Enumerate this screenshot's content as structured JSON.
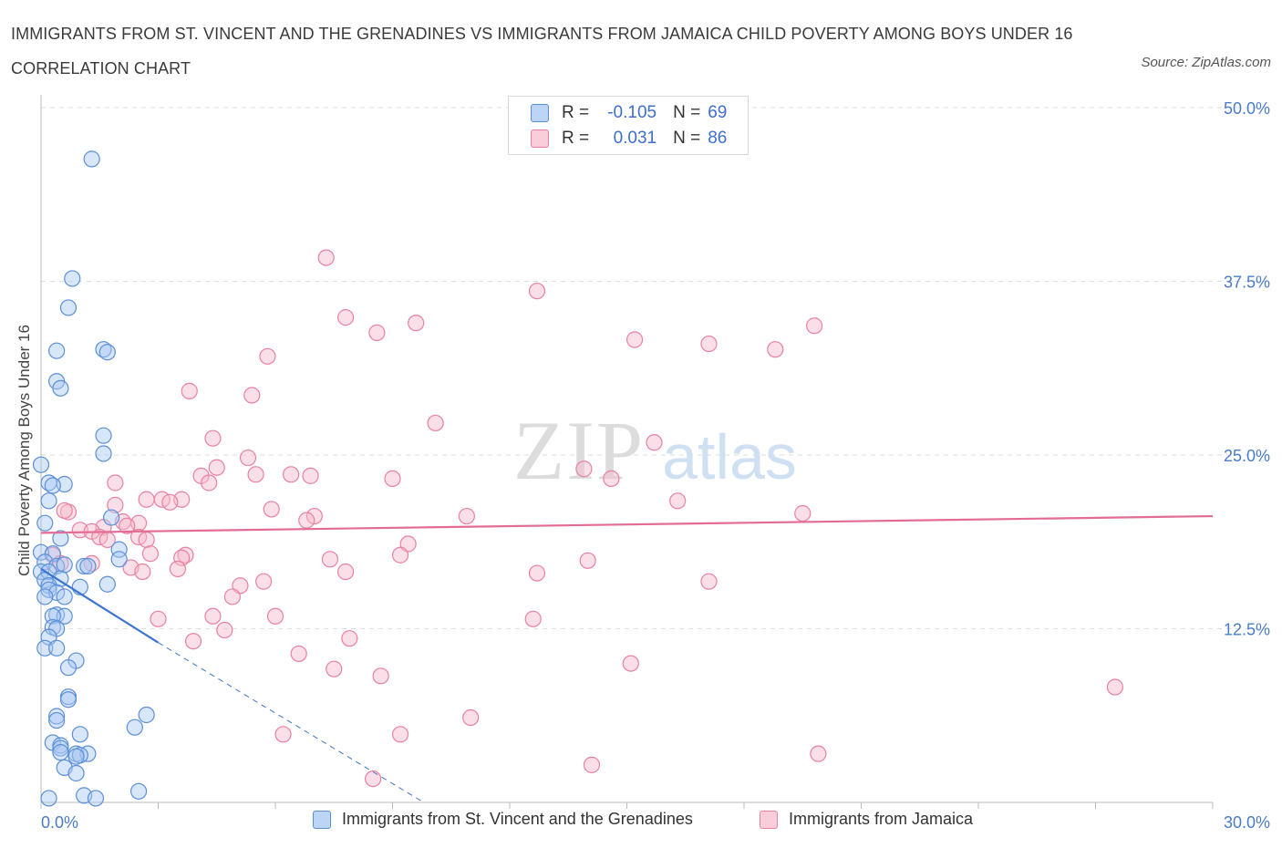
{
  "header": {
    "title": "IMMIGRANTS FROM ST. VINCENT AND THE GRENADINES VS IMMIGRANTS FROM JAMAICA CHILD POVERTY AMONG BOYS UNDER 16 CORRELATION CHART",
    "source": "Source: ZipAtlas.com"
  },
  "watermark": {
    "zip": "ZIP",
    "atlas": "atlas"
  },
  "legend_top": {
    "rows": [
      {
        "r_label": "R =",
        "r_value": "-0.105",
        "n_label": "N =",
        "n_value": "69"
      },
      {
        "r_label": "R =",
        "r_value": "0.031",
        "n_label": "N =",
        "n_value": "86"
      }
    ]
  },
  "legend_bottom": {
    "items": [
      {
        "label": "Immigrants from St. Vincent and the Grenadines"
      },
      {
        "label": "Immigrants from Jamaica"
      }
    ]
  },
  "colors": {
    "blue_fill": "#a9c8f2",
    "blue_stroke": "#5b8fd8",
    "blue_line": "#3b74d1",
    "pink_fill": "#f6b9cc",
    "pink_stroke": "#e9819f",
    "pink_line": "#e36c95",
    "grid": "#dddddd",
    "tick_text": "#4a7cc9"
  },
  "chart_data": {
    "type": "scatter",
    "title": "IMMIGRANTS FROM ST. VINCENT AND THE GRENADINES VS IMMIGRANTS FROM JAMAICA CHILD POVERTY AMONG BOYS UNDER 16 CORRELATION CHART",
    "xlabel": "",
    "ylabel": "Child Poverty Among Boys Under 16",
    "xlim": [
      0,
      30
    ],
    "ylim": [
      0,
      50
    ],
    "x_tick_labels": [
      "0.0%",
      "30.0%"
    ],
    "y_ticks": [
      12.5,
      25.0,
      37.5,
      50.0
    ],
    "y_tick_labels": [
      "12.5%",
      "25.0%",
      "37.5%",
      "50.0%"
    ],
    "grid": true,
    "legend_placement": "top-center",
    "series": [
      {
        "name": "Immigrants from St. Vincent and the Grenadines",
        "color": "#a9c8f2",
        "r": -0.105,
        "n": 69,
        "trend": {
          "x0": 0.0,
          "y0": 16.8,
          "x1": 3.0,
          "y1": 11.5,
          "x_dash_end": 9.8,
          "y_dash_end": 0.0
        },
        "points": [
          [
            1.3,
            46.3
          ],
          [
            0.8,
            37.7
          ],
          [
            0.7,
            35.6
          ],
          [
            0.4,
            32.5
          ],
          [
            1.6,
            32.6
          ],
          [
            1.7,
            32.4
          ],
          [
            0.4,
            30.3
          ],
          [
            0.5,
            29.8
          ],
          [
            1.6,
            26.4
          ],
          [
            1.6,
            25.1
          ],
          [
            0.0,
            24.3
          ],
          [
            0.2,
            23.0
          ],
          [
            0.6,
            22.9
          ],
          [
            0.3,
            22.8
          ],
          [
            0.2,
            21.7
          ],
          [
            0.1,
            20.1
          ],
          [
            1.8,
            20.5
          ],
          [
            0.5,
            19.0
          ],
          [
            0.0,
            18.0
          ],
          [
            0.3,
            17.9
          ],
          [
            2.0,
            18.2
          ],
          [
            2.0,
            17.5
          ],
          [
            0.1,
            17.3
          ],
          [
            0.4,
            17.0
          ],
          [
            0.6,
            17.1
          ],
          [
            1.1,
            17.0
          ],
          [
            1.2,
            17.0
          ],
          [
            0.0,
            16.6
          ],
          [
            0.2,
            16.6
          ],
          [
            0.5,
            16.1
          ],
          [
            0.1,
            16.0
          ],
          [
            0.2,
            15.6
          ],
          [
            1.7,
            15.7
          ],
          [
            1.0,
            15.5
          ],
          [
            0.2,
            15.3
          ],
          [
            0.4,
            15.1
          ],
          [
            0.1,
            14.8
          ],
          [
            0.6,
            14.8
          ],
          [
            0.4,
            13.5
          ],
          [
            0.6,
            13.4
          ],
          [
            0.3,
            13.4
          ],
          [
            0.3,
            12.6
          ],
          [
            0.4,
            12.5
          ],
          [
            0.2,
            11.9
          ],
          [
            0.1,
            11.1
          ],
          [
            0.4,
            11.1
          ],
          [
            0.9,
            10.2
          ],
          [
            0.7,
            9.7
          ],
          [
            0.7,
            7.6
          ],
          [
            0.7,
            7.4
          ],
          [
            0.4,
            6.2
          ],
          [
            0.4,
            5.9
          ],
          [
            2.7,
            6.3
          ],
          [
            2.4,
            5.4
          ],
          [
            1.0,
            4.9
          ],
          [
            0.3,
            4.3
          ],
          [
            0.5,
            4.1
          ],
          [
            0.5,
            3.9
          ],
          [
            0.5,
            3.6
          ],
          [
            0.9,
            3.5
          ],
          [
            1.2,
            3.5
          ],
          [
            1.0,
            3.4
          ],
          [
            0.9,
            3.3
          ],
          [
            0.6,
            2.5
          ],
          [
            0.9,
            2.1
          ],
          [
            2.5,
            0.8
          ],
          [
            1.1,
            0.5
          ],
          [
            1.4,
            0.3
          ],
          [
            0.2,
            0.3
          ]
        ]
      },
      {
        "name": "Immigrants from Jamaica",
        "color": "#f6b9cc",
        "r": 0.031,
        "n": 86,
        "trend": {
          "x0": 0.0,
          "y0": 19.4,
          "x1": 30.0,
          "y1": 20.6
        },
        "points": [
          [
            7.3,
            39.2
          ],
          [
            12.7,
            36.8
          ],
          [
            7.8,
            34.9
          ],
          [
            9.6,
            34.5
          ],
          [
            19.8,
            34.3
          ],
          [
            8.6,
            33.8
          ],
          [
            15.2,
            33.3
          ],
          [
            17.1,
            33.0
          ],
          [
            18.8,
            32.6
          ],
          [
            5.8,
            32.1
          ],
          [
            3.8,
            29.6
          ],
          [
            5.4,
            29.3
          ],
          [
            10.1,
            27.3
          ],
          [
            4.4,
            26.2
          ],
          [
            15.7,
            25.9
          ],
          [
            5.3,
            24.8
          ],
          [
            4.5,
            24.1
          ],
          [
            13.9,
            24.0
          ],
          [
            4.1,
            23.5
          ],
          [
            5.5,
            23.6
          ],
          [
            6.4,
            23.6
          ],
          [
            6.9,
            23.5
          ],
          [
            9.0,
            23.3
          ],
          [
            14.6,
            23.3
          ],
          [
            4.3,
            23.0
          ],
          [
            1.9,
            23.0
          ],
          [
            2.7,
            21.8
          ],
          [
            3.1,
            21.8
          ],
          [
            3.6,
            21.8
          ],
          [
            3.3,
            21.6
          ],
          [
            1.9,
            21.4
          ],
          [
            16.3,
            21.7
          ],
          [
            5.9,
            21.1
          ],
          [
            0.7,
            20.9
          ],
          [
            19.5,
            20.8
          ],
          [
            10.9,
            20.6
          ],
          [
            7.0,
            20.6
          ],
          [
            6.8,
            20.3
          ],
          [
            2.1,
            20.2
          ],
          [
            2.5,
            20.1
          ],
          [
            2.2,
            19.9
          ],
          [
            1.6,
            19.8
          ],
          [
            1.0,
            19.6
          ],
          [
            1.3,
            19.5
          ],
          [
            1.5,
            19.1
          ],
          [
            2.5,
            19.1
          ],
          [
            2.7,
            18.9
          ],
          [
            1.7,
            18.9
          ],
          [
            9.4,
            18.6
          ],
          [
            2.8,
            17.9
          ],
          [
            3.7,
            17.8
          ],
          [
            0.3,
            17.8
          ],
          [
            3.6,
            17.6
          ],
          [
            7.4,
            17.5
          ],
          [
            14.0,
            17.4
          ],
          [
            9.2,
            17.8
          ],
          [
            0.5,
            17.2
          ],
          [
            1.3,
            17.2
          ],
          [
            2.3,
            16.9
          ],
          [
            3.5,
            16.8
          ],
          [
            2.6,
            16.6
          ],
          [
            7.8,
            16.6
          ],
          [
            12.7,
            16.5
          ],
          [
            17.1,
            15.9
          ],
          [
            5.7,
            15.9
          ],
          [
            5.1,
            15.6
          ],
          [
            4.9,
            14.8
          ],
          [
            4.4,
            13.4
          ],
          [
            3.0,
            13.2
          ],
          [
            6.0,
            13.4
          ],
          [
            12.6,
            13.2
          ],
          [
            4.7,
            12.4
          ],
          [
            3.9,
            11.6
          ],
          [
            7.9,
            11.8
          ],
          [
            6.6,
            10.7
          ],
          [
            7.5,
            9.6
          ],
          [
            8.7,
            9.1
          ],
          [
            15.1,
            10.0
          ],
          [
            27.5,
            8.3
          ],
          [
            11.0,
            6.1
          ],
          [
            6.2,
            4.9
          ],
          [
            9.2,
            4.9
          ],
          [
            14.1,
            2.7
          ],
          [
            19.9,
            3.5
          ],
          [
            8.5,
            1.7
          ],
          [
            0.6,
            21.0
          ]
        ]
      }
    ]
  }
}
